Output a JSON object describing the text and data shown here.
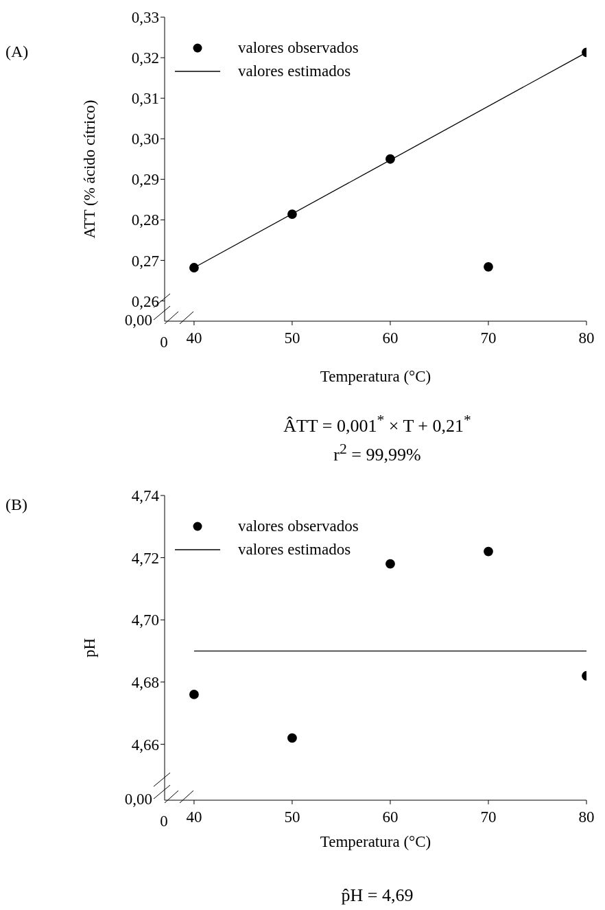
{
  "chart_data": [
    {
      "type": "scatter",
      "xlabel": "Temperatura (°C)",
      "ylabel": "ATT (% ácido cítrico)",
      "series": [
        {
          "name": "valores observados",
          "color": "#000000",
          "marker": "circle",
          "x": [
            40,
            50,
            60,
            70,
            80
          ],
          "values": [
            0.2682,
            0.2814,
            0.295,
            0.2684,
            0.3213
          ]
        },
        {
          "name": "valores estimados",
          "type": "line",
          "color": "#000000",
          "marker": "none",
          "x": [
            40,
            80
          ],
          "values": [
            0.2682,
            0.3213
          ]
        }
      ],
      "xlim": [
        37,
        80
      ],
      "xticks": [
        40,
        50,
        60,
        70,
        80
      ],
      "ylim": [
        0.255,
        0.33
      ],
      "yticks": [
        {
          "value": 0.26,
          "label": "0,26"
        },
        {
          "value": 0.27,
          "label": "0,27"
        },
        {
          "value": 0.28,
          "label": "0,28"
        },
        {
          "value": 0.29,
          "label": "0,29"
        },
        {
          "value": 0.3,
          "label": "0,30"
        },
        {
          "value": 0.31,
          "label": "0,31"
        },
        {
          "value": 0.32,
          "label": "0,32"
        },
        {
          "value": 0.33,
          "label": "0,33"
        }
      ],
      "legend": "top left",
      "annotations": [
        "(A)",
        "0",
        "0,00",
        "ÂTT = 0,001$^{*}$ × T + 0,21$^{*}$",
        "r$^{2}$ = 99,99%"
      ]
    },
    {
      "type": "scatter",
      "xlabel": "Temperatura (°C)",
      "ylabel": "pH",
      "series": [
        {
          "name": "valores observados",
          "color": "#000000",
          "marker": "circle",
          "x": [
            40,
            50,
            60,
            70,
            80
          ],
          "values": [
            4.676,
            4.662,
            4.718,
            4.722,
            4.682
          ]
        },
        {
          "name": "valores estimados",
          "type": "line",
          "color": "#000000",
          "marker": "none",
          "x": [
            40,
            80
          ],
          "values": [
            4.69,
            4.69
          ]
        }
      ],
      "xlim": [
        37,
        80
      ],
      "xticks": [
        40,
        50,
        60,
        70,
        80
      ],
      "ylim": [
        4.642,
        4.74
      ],
      "yticks": [
        {
          "value": 4.66,
          "label": "4,66"
        },
        {
          "value": 4.68,
          "label": "4,68"
        },
        {
          "value": 4.7,
          "label": "4,70"
        },
        {
          "value": 4.72,
          "label": "4,72"
        },
        {
          "value": 4.74,
          "label": "4,74"
        }
      ],
      "legend": "top left",
      "annotations": [
        "(B)",
        "0",
        "0,00",
        "p̂H = 4,69"
      ]
    }
  ]
}
